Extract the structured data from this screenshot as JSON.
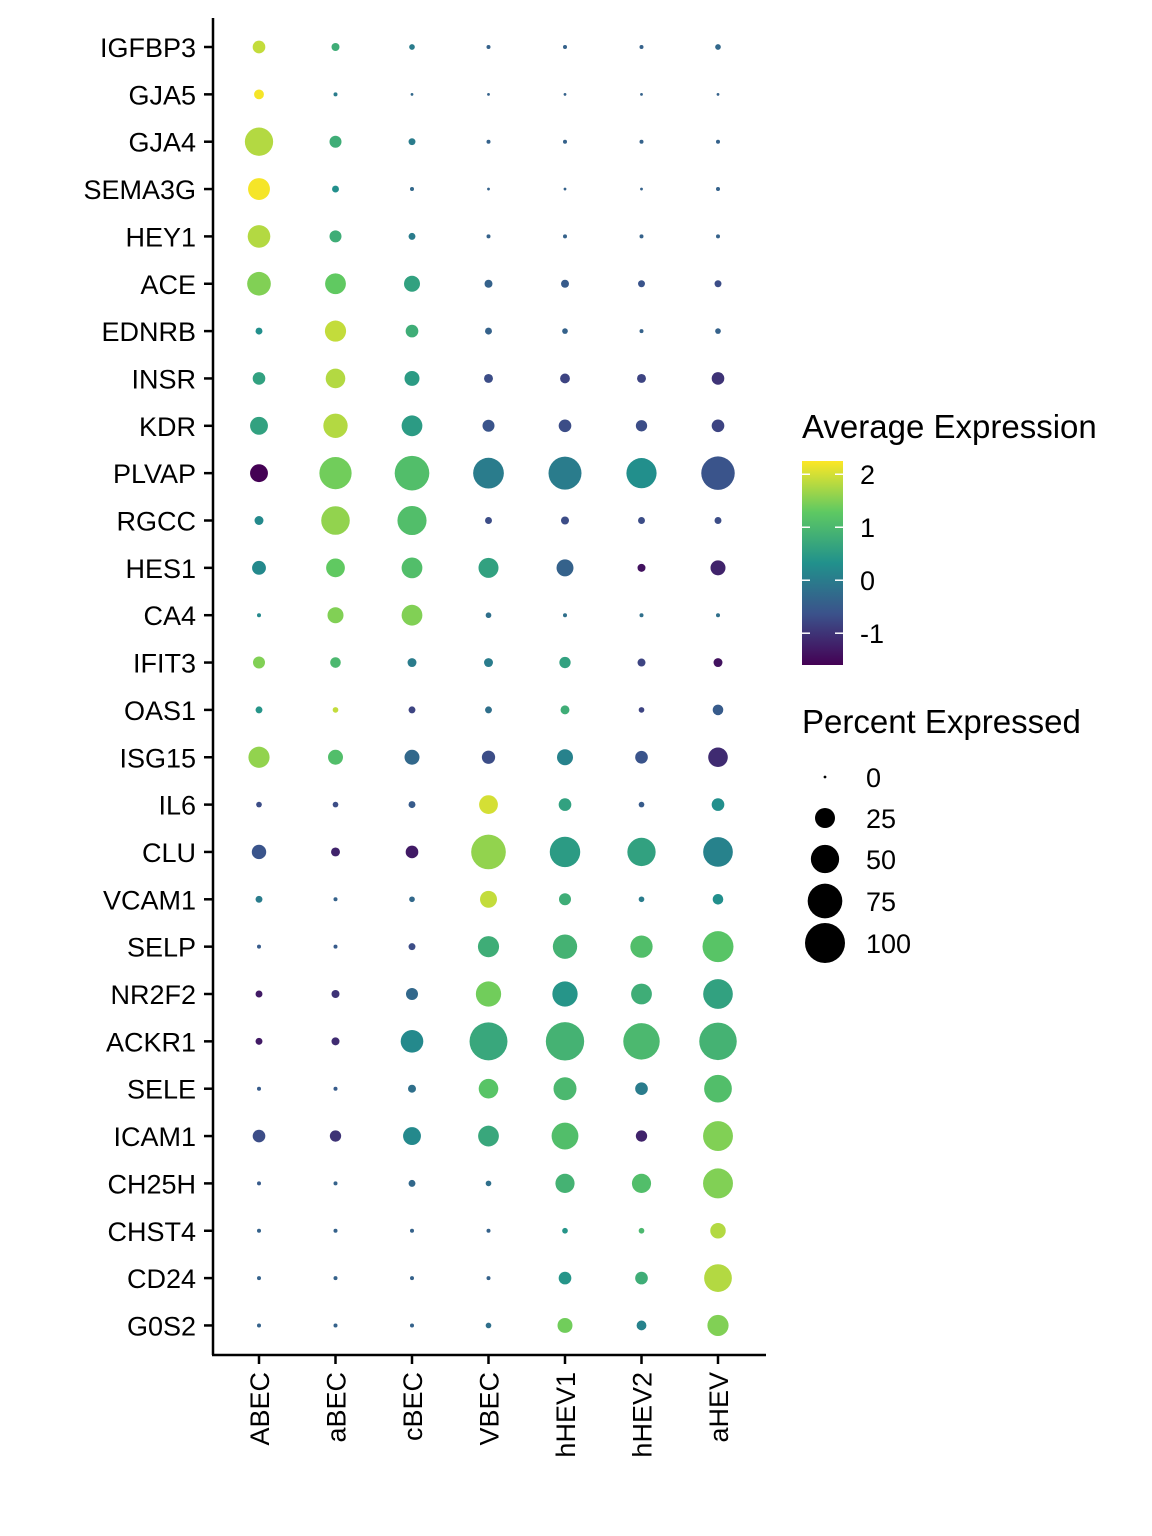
{
  "chart_data": {
    "type": "dotplot",
    "genes": [
      "IGFBP3",
      "GJA5",
      "GJA4",
      "SEMA3G",
      "HEY1",
      "ACE",
      "EDNRB",
      "INSR",
      "KDR",
      "PLVAP",
      "RGCC",
      "HES1",
      "CA4",
      "IFIT3",
      "OAS1",
      "ISG15",
      "IL6",
      "CLU",
      "VCAM1",
      "SELP",
      "NR2F2",
      "ACKR1",
      "SELE",
      "ICAM1",
      "CH25H",
      "CHST4",
      "CD24",
      "G0S2"
    ],
    "cell_types": [
      "ABEC",
      "aBEC",
      "cBEC",
      "VBEC",
      "hHEV1",
      "hHEV2",
      "aHEV"
    ],
    "avg_expression": [
      [
        1.9,
        0.8,
        0.0,
        -0.4,
        -0.4,
        -0.4,
        -0.3
      ],
      [
        2.2,
        0.0,
        -0.3,
        -0.4,
        -0.4,
        -0.4,
        -0.4
      ],
      [
        1.8,
        0.8,
        0.0,
        -0.4,
        -0.4,
        -0.4,
        -0.4
      ],
      [
        2.2,
        0.3,
        -0.3,
        -0.4,
        -0.4,
        -0.4,
        -0.4
      ],
      [
        1.8,
        0.8,
        0.0,
        -0.4,
        -0.4,
        -0.4,
        -0.4
      ],
      [
        1.5,
        1.3,
        0.6,
        -0.4,
        -0.5,
        -0.6,
        -0.7
      ],
      [
        0.3,
        1.9,
        0.8,
        -0.4,
        -0.4,
        -0.4,
        -0.4
      ],
      [
        0.6,
        1.8,
        0.5,
        -0.7,
        -0.8,
        -0.8,
        -1.0
      ],
      [
        0.6,
        1.8,
        0.5,
        -0.6,
        -0.7,
        -0.7,
        -0.8
      ],
      [
        -1.6,
        1.4,
        1.1,
        0.0,
        0.0,
        0.3,
        -0.6
      ],
      [
        0.2,
        1.6,
        1.1,
        -0.7,
        -0.7,
        -0.7,
        -0.7
      ],
      [
        0.2,
        1.3,
        1.1,
        0.6,
        -0.4,
        -1.4,
        -1.2
      ],
      [
        0.2,
        1.5,
        1.5,
        -0.2,
        -0.2,
        -0.2,
        -0.2
      ],
      [
        1.5,
        1.0,
        0.0,
        0.0,
        0.6,
        -0.8,
        -1.4
      ],
      [
        0.4,
        1.9,
        -0.8,
        -0.2,
        0.8,
        -0.8,
        -0.5
      ],
      [
        1.6,
        1.1,
        -0.3,
        -0.7,
        0.1,
        -0.6,
        -1.1
      ],
      [
        -0.7,
        -0.7,
        -0.5,
        2.0,
        0.6,
        -0.5,
        0.3
      ],
      [
        -0.6,
        -1.2,
        -1.3,
        1.6,
        0.5,
        0.6,
        0.1
      ],
      [
        0.0,
        -0.4,
        -0.3,
        1.9,
        0.8,
        0.0,
        0.3
      ],
      [
        -0.5,
        -0.5,
        -0.7,
        0.8,
        0.9,
        1.1,
        1.2
      ],
      [
        -1.3,
        -1.0,
        -0.3,
        1.4,
        0.4,
        0.8,
        0.6
      ],
      [
        -1.3,
        -1.1,
        0.2,
        0.7,
        0.9,
        1.0,
        0.9
      ],
      [
        -0.5,
        -0.5,
        -0.2,
        1.2,
        1.0,
        0.0,
        1.1
      ],
      [
        -0.7,
        -1.0,
        0.2,
        0.7,
        1.1,
        -1.2,
        1.5
      ],
      [
        -0.5,
        -0.4,
        -0.3,
        -0.2,
        0.9,
        1.1,
        1.5
      ],
      [
        -0.4,
        -0.4,
        -0.4,
        -0.4,
        0.4,
        1.0,
        1.8
      ],
      [
        -0.4,
        -0.4,
        -0.4,
        -0.4,
        0.4,
        0.8,
        1.8
      ],
      [
        -0.4,
        -0.4,
        -0.4,
        -0.2,
        1.4,
        0.1,
        1.5
      ]
    ],
    "pct_expressed": [
      [
        10,
        4,
        2,
        1,
        1,
        1,
        2
      ],
      [
        6,
        1,
        0,
        0,
        0,
        0,
        0
      ],
      [
        50,
        9,
        3,
        1,
        1,
        1,
        1
      ],
      [
        30,
        3,
        1,
        0,
        0,
        0,
        1
      ],
      [
        32,
        9,
        3,
        1,
        1,
        1,
        1
      ],
      [
        35,
        27,
        16,
        4,
        4,
        3,
        3
      ],
      [
        3,
        28,
        10,
        3,
        2,
        1,
        2
      ],
      [
        10,
        24,
        14,
        5,
        6,
        5,
        10
      ],
      [
        20,
        37,
        27,
        9,
        10,
        8,
        10
      ],
      [
        20,
        65,
        75,
        59,
        68,
        57,
        70
      ],
      [
        5,
        51,
        53,
        3,
        4,
        3,
        3
      ],
      [
        12,
        22,
        27,
        25,
        18,
        4,
        14
      ],
      [
        1,
        16,
        27,
        2,
        1,
        1,
        1
      ],
      [
        9,
        7,
        5,
        5,
        8,
        4,
        5
      ],
      [
        3,
        2,
        3,
        3,
        5,
        2,
        7
      ],
      [
        28,
        14,
        14,
        11,
        16,
        10,
        24
      ],
      [
        2,
        2,
        3,
        22,
        10,
        2,
        10
      ],
      [
        13,
        5,
        10,
        75,
        58,
        50,
        55
      ],
      [
        3,
        1,
        2,
        18,
        9,
        2,
        7
      ],
      [
        1,
        1,
        3,
        28,
        37,
        31,
        60
      ],
      [
        3,
        4,
        9,
        40,
        40,
        27,
        55
      ],
      [
        3,
        4,
        32,
        90,
        92,
        83,
        88
      ],
      [
        1,
        1,
        4,
        24,
        33,
        10,
        48
      ],
      [
        10,
        8,
        20,
        27,
        45,
        8,
        56
      ],
      [
        1,
        1,
        3,
        2,
        23,
        23,
        56
      ],
      [
        1,
        1,
        1,
        1,
        2,
        2,
        15
      ],
      [
        1,
        1,
        1,
        1,
        10,
        10,
        48
      ],
      [
        1,
        1,
        1,
        2,
        14,
        6,
        28
      ]
    ],
    "color_scale": {
      "title": "Average Expression",
      "range": [
        -1.6,
        2.25
      ],
      "breaks": [
        2,
        1,
        0,
        -1
      ],
      "break_labels": [
        "2",
        "1",
        "0",
        "-1"
      ],
      "palette": [
        "#440154",
        "#3b528b",
        "#21918c",
        "#5ec962",
        "#fde725"
      ]
    },
    "size_scale": {
      "title": "Percent Expressed",
      "range": [
        0,
        100
      ],
      "breaks": [
        0,
        25,
        50,
        75,
        100
      ],
      "break_labels": [
        "0",
        "25",
        "50",
        "75",
        "100"
      ]
    },
    "xlabel": "",
    "ylabel": "",
    "grid": false,
    "legend_position": "right"
  }
}
